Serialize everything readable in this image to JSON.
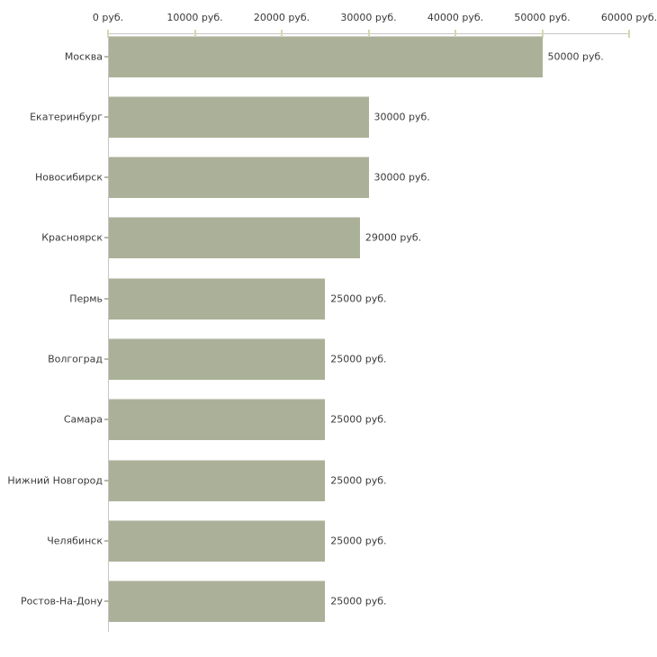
{
  "chart_data": {
    "type": "bar",
    "orientation": "horizontal",
    "unit": "руб.",
    "grid": false,
    "legend": false,
    "categories": [
      "Москва",
      "Екатеринбург",
      "Новосибирск",
      "Красноярск",
      "Пермь",
      "Волгоград",
      "Самара",
      "Нижний Новгород",
      "Челябинск",
      "Ростов-На-Дону"
    ],
    "values": [
      50000,
      30000,
      30000,
      29000,
      25000,
      25000,
      25000,
      25000,
      25000,
      25000
    ],
    "value_labels": [
      "50000 руб.",
      "30000 руб.",
      "30000 руб.",
      "29000 руб.",
      "25000 руб.",
      "25000 руб.",
      "25000 руб.",
      "25000 руб.",
      "25000 руб.",
      "25000 руб."
    ],
    "x_axis": {
      "position": "top",
      "min": 0,
      "max": 60000,
      "ticks": [
        0,
        10000,
        20000,
        30000,
        40000,
        50000,
        60000
      ],
      "tick_labels": [
        "0 руб.",
        "10000 руб.",
        "20000 руб.",
        "30000 руб.",
        "40000 руб.",
        "50000 руб.",
        "60000 руб."
      ]
    },
    "colors": {
      "bar": "#abb199",
      "bar_top_edge": "#d4d5ca",
      "axis_line": "#c6c6c6",
      "axis_tick": "#d6d8ac",
      "category_tick": "#b8b8ab",
      "text": "#3a3a3a",
      "background": "#ffffff"
    }
  }
}
